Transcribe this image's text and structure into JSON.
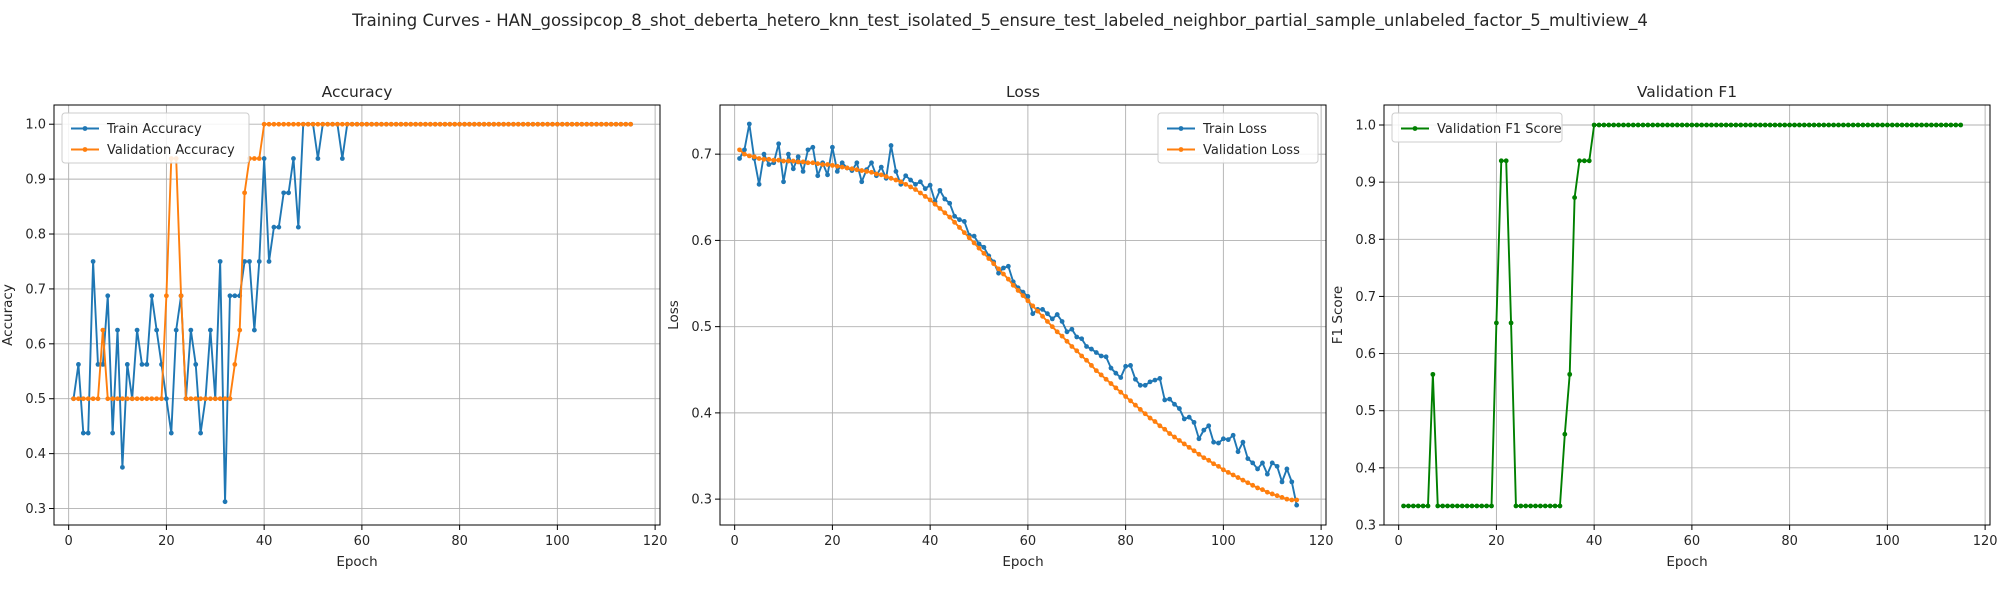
{
  "figure": {
    "suptitle": "Training Curves - HAN_gossipcop_8_shot_deberta_hetero_knn_test_isolated_5_ensure_test_labeled_neighbor_partial_sample_unlabeled_factor_5_multiview_4"
  },
  "colors": {
    "blue": "#1f77b4",
    "orange": "#ff7f0e",
    "green": "#008000",
    "grid": "#b0b0b0"
  },
  "chart_data": [
    {
      "type": "line",
      "title": "Accuracy",
      "xlabel": "Epoch",
      "ylabel": "Accuracy",
      "xlim": [
        -3,
        121
      ],
      "ylim": [
        0.27,
        1.035
      ],
      "xticks": [
        0,
        20,
        40,
        60,
        80,
        100,
        120
      ],
      "yticks": [
        0.3,
        0.4,
        0.5,
        0.6,
        0.7,
        0.8,
        0.9,
        1.0
      ],
      "grid": true,
      "legend": "upper-left",
      "series": [
        {
          "name": "Train Accuracy",
          "color": "#1f77b4",
          "x_start": 1,
          "values": [
            0.5,
            0.5625,
            0.4375,
            0.4375,
            0.75,
            0.5625,
            0.5625,
            0.6875,
            0.4375,
            0.625,
            0.375,
            0.5625,
            0.5,
            0.625,
            0.5625,
            0.5625,
            0.6875,
            0.625,
            0.5625,
            0.5,
            0.4375,
            0.625,
            0.6875,
            0.5,
            0.625,
            0.5625,
            0.4375,
            0.5,
            0.625,
            0.5,
            0.75,
            0.3125,
            0.6875,
            0.6875,
            0.6875,
            0.75,
            0.75,
            0.625,
            0.75,
            0.9375,
            0.75,
            0.8125,
            0.8125,
            0.875,
            0.875,
            0.9375,
            0.8125,
            1.0,
            1.0,
            1.0,
            0.9375,
            1.0,
            1.0,
            1.0,
            1.0,
            0.9375,
            1.0,
            1.0,
            1.0,
            1.0,
            1.0,
            1.0,
            1.0,
            1.0,
            1.0,
            1.0,
            1.0,
            1.0,
            1.0,
            1.0,
            1.0,
            1.0,
            1.0,
            1.0,
            1.0,
            1.0,
            1.0,
            1.0,
            1.0,
            1.0,
            1.0,
            1.0,
            1.0,
            1.0,
            1.0,
            1.0,
            1.0,
            1.0,
            1.0,
            1.0,
            1.0,
            1.0,
            1.0,
            1.0,
            1.0,
            1.0,
            1.0,
            1.0,
            1.0,
            1.0,
            1.0,
            1.0,
            1.0,
            1.0,
            1.0,
            1.0,
            1.0,
            1.0,
            1.0,
            1.0,
            1.0,
            1.0,
            1.0,
            1.0,
            1.0
          ]
        },
        {
          "name": "Validation Accuracy",
          "color": "#ff7f0e",
          "x_start": 1,
          "values": [
            0.5,
            0.5,
            0.5,
            0.5,
            0.5,
            0.5,
            0.625,
            0.5,
            0.5,
            0.5,
            0.5,
            0.5,
            0.5,
            0.5,
            0.5,
            0.5,
            0.5,
            0.5,
            0.5,
            0.6875,
            0.9375,
            0.9375,
            0.6875,
            0.5,
            0.5,
            0.5,
            0.5,
            0.5,
            0.5,
            0.5,
            0.5,
            0.5,
            0.5,
            0.5625,
            0.625,
            0.875,
            0.9375,
            0.9375,
            0.9375,
            1.0,
            1.0,
            1.0,
            1.0,
            1.0,
            1.0,
            1.0,
            1.0,
            1.0,
            1.0,
            1.0,
            1.0,
            1.0,
            1.0,
            1.0,
            1.0,
            1.0,
            1.0,
            1.0,
            1.0,
            1.0,
            1.0,
            1.0,
            1.0,
            1.0,
            1.0,
            1.0,
            1.0,
            1.0,
            1.0,
            1.0,
            1.0,
            1.0,
            1.0,
            1.0,
            1.0,
            1.0,
            1.0,
            1.0,
            1.0,
            1.0,
            1.0,
            1.0,
            1.0,
            1.0,
            1.0,
            1.0,
            1.0,
            1.0,
            1.0,
            1.0,
            1.0,
            1.0,
            1.0,
            1.0,
            1.0,
            1.0,
            1.0,
            1.0,
            1.0,
            1.0,
            1.0,
            1.0,
            1.0,
            1.0,
            1.0,
            1.0,
            1.0,
            1.0,
            1.0,
            1.0,
            1.0,
            1.0,
            1.0,
            1.0,
            1.0
          ]
        }
      ]
    },
    {
      "type": "line",
      "title": "Loss",
      "xlabel": "Epoch",
      "ylabel": "Loss",
      "xlim": [
        -3,
        121
      ],
      "ylim": [
        0.27,
        0.757
      ],
      "xticks": [
        0,
        20,
        40,
        60,
        80,
        100,
        120
      ],
      "yticks": [
        0.3,
        0.4,
        0.5,
        0.6,
        0.7
      ],
      "grid": true,
      "legend": "upper-right",
      "series": [
        {
          "name": "Train Loss",
          "color": "#1f77b4",
          "x_start": 1,
          "values": [
            0.695,
            0.705,
            0.735,
            0.695,
            0.665,
            0.7,
            0.688,
            0.69,
            0.712,
            0.668,
            0.7,
            0.683,
            0.697,
            0.68,
            0.705,
            0.708,
            0.675,
            0.69,
            0.676,
            0.708,
            0.68,
            0.69,
            0.684,
            0.681,
            0.69,
            0.668,
            0.682,
            0.69,
            0.675,
            0.685,
            0.672,
            0.71,
            0.68,
            0.665,
            0.675,
            0.67,
            0.665,
            0.668,
            0.66,
            0.664,
            0.645,
            0.658,
            0.648,
            0.643,
            0.628,
            0.624,
            0.622,
            0.606,
            0.605,
            0.596,
            0.592,
            0.582,
            0.575,
            0.562,
            0.568,
            0.57,
            0.552,
            0.545,
            0.54,
            0.535,
            0.515,
            0.52,
            0.52,
            0.515,
            0.509,
            0.514,
            0.506,
            0.494,
            0.497,
            0.488,
            0.486,
            0.477,
            0.474,
            0.47,
            0.466,
            0.465,
            0.452,
            0.446,
            0.441,
            0.454,
            0.455,
            0.439,
            0.432,
            0.432,
            0.436,
            0.438,
            0.44,
            0.415,
            0.416,
            0.41,
            0.405,
            0.393,
            0.395,
            0.389,
            0.37,
            0.38,
            0.385,
            0.366,
            0.365,
            0.37,
            0.369,
            0.374,
            0.355,
            0.366,
            0.347,
            0.342,
            0.335,
            0.342,
            0.329,
            0.342,
            0.338,
            0.32,
            0.335,
            0.32,
            0.293
          ]
        },
        {
          "name": "Validation Loss",
          "color": "#ff7f0e",
          "x_start": 1,
          "values": [
            0.705,
            0.7,
            0.698,
            0.697,
            0.695,
            0.694,
            0.694,
            0.693,
            0.693,
            0.692,
            0.692,
            0.692,
            0.691,
            0.691,
            0.69,
            0.69,
            0.689,
            0.688,
            0.688,
            0.687,
            0.686,
            0.685,
            0.684,
            0.683,
            0.682,
            0.681,
            0.68,
            0.679,
            0.677,
            0.676,
            0.674,
            0.672,
            0.67,
            0.668,
            0.665,
            0.662,
            0.659,
            0.655,
            0.651,
            0.647,
            0.642,
            0.637,
            0.632,
            0.627,
            0.621,
            0.615,
            0.609,
            0.603,
            0.597,
            0.591,
            0.585,
            0.579,
            0.573,
            0.567,
            0.561,
            0.555,
            0.548,
            0.542,
            0.536,
            0.53,
            0.524,
            0.518,
            0.512,
            0.506,
            0.5,
            0.494,
            0.489,
            0.483,
            0.477,
            0.472,
            0.466,
            0.461,
            0.455,
            0.449,
            0.444,
            0.439,
            0.434,
            0.429,
            0.424,
            0.419,
            0.414,
            0.409,
            0.404,
            0.399,
            0.394,
            0.39,
            0.385,
            0.381,
            0.376,
            0.372,
            0.368,
            0.364,
            0.36,
            0.356,
            0.352,
            0.348,
            0.345,
            0.341,
            0.338,
            0.334,
            0.331,
            0.328,
            0.325,
            0.322,
            0.319,
            0.316,
            0.313,
            0.311,
            0.308,
            0.306,
            0.304,
            0.302,
            0.3,
            0.299,
            0.299
          ]
        }
      ]
    },
    {
      "type": "line",
      "title": "Validation F1",
      "xlabel": "Epoch",
      "ylabel": "F1 Score",
      "xlim": [
        -3,
        121
      ],
      "ylim": [
        0.3,
        1.035
      ],
      "xticks": [
        0,
        20,
        40,
        60,
        80,
        100,
        120
      ],
      "yticks": [
        0.3,
        0.4,
        0.5,
        0.6,
        0.7,
        0.8,
        0.9,
        1.0
      ],
      "grid": true,
      "legend": "upper-left",
      "series": [
        {
          "name": "Validation F1 Score",
          "color": "#008000",
          "x_start": 1,
          "values": [
            0.3333,
            0.3333,
            0.3333,
            0.3333,
            0.3333,
            0.3333,
            0.5636,
            0.3333,
            0.3333,
            0.3333,
            0.3333,
            0.3333,
            0.3333,
            0.3333,
            0.3333,
            0.3333,
            0.3333,
            0.3333,
            0.3333,
            0.6537,
            0.9373,
            0.9373,
            0.6537,
            0.3333,
            0.3333,
            0.3333,
            0.3333,
            0.3333,
            0.3333,
            0.3333,
            0.3333,
            0.3333,
            0.3333,
            0.4589,
            0.5636,
            0.873,
            0.9373,
            0.9373,
            0.9373,
            1.0,
            1.0,
            1.0,
            1.0,
            1.0,
            1.0,
            1.0,
            1.0,
            1.0,
            1.0,
            1.0,
            1.0,
            1.0,
            1.0,
            1.0,
            1.0,
            1.0,
            1.0,
            1.0,
            1.0,
            1.0,
            1.0,
            1.0,
            1.0,
            1.0,
            1.0,
            1.0,
            1.0,
            1.0,
            1.0,
            1.0,
            1.0,
            1.0,
            1.0,
            1.0,
            1.0,
            1.0,
            1.0,
            1.0,
            1.0,
            1.0,
            1.0,
            1.0,
            1.0,
            1.0,
            1.0,
            1.0,
            1.0,
            1.0,
            1.0,
            1.0,
            1.0,
            1.0,
            1.0,
            1.0,
            1.0,
            1.0,
            1.0,
            1.0,
            1.0,
            1.0,
            1.0,
            1.0,
            1.0,
            1.0,
            1.0,
            1.0,
            1.0,
            1.0,
            1.0,
            1.0,
            1.0,
            1.0,
            1.0,
            1.0,
            1.0
          ]
        }
      ]
    }
  ]
}
